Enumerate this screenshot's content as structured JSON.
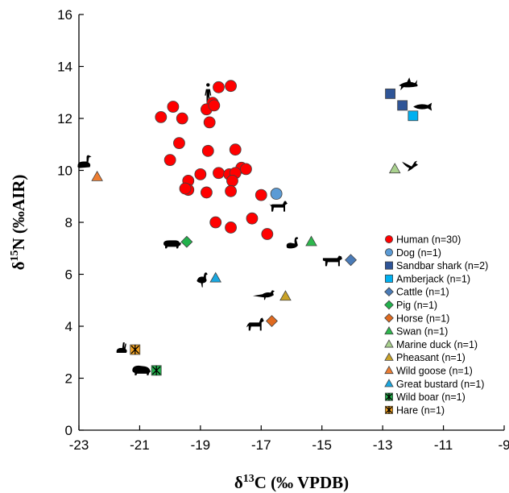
{
  "chart_data": {
    "type": "scatter",
    "xlabel_main": "δ",
    "xlabel_sup": "13",
    "xlabel_rest": "C (‰ VPDB)",
    "ylabel_main": "δ",
    "ylabel_sup": "15",
    "ylabel_rest": "N (‰AIR)",
    "xlim": [
      -23,
      -9
    ],
    "ylim": [
      0,
      16
    ],
    "xticks": [
      -23,
      -21,
      -19,
      -17,
      -15,
      -13,
      -11,
      -9
    ],
    "yticks": [
      0,
      2,
      4,
      6,
      8,
      10,
      12,
      14,
      16
    ],
    "xtick_labels": [
      "-23",
      "-21",
      "-19",
      "-17",
      "-15",
      "-13",
      "-11",
      "-9"
    ],
    "ytick_labels": [
      "0",
      "2",
      "4",
      "6",
      "8",
      "10",
      "12",
      "14",
      "16"
    ],
    "legend_position": "lower-right",
    "series": [
      {
        "name": "Human (n=30)",
        "marker": "circle",
        "color": "#ff0000",
        "points": [
          [
            -18.4,
            13.2
          ],
          [
            -18.0,
            13.25
          ],
          [
            -18.6,
            12.6
          ],
          [
            -19.9,
            12.45
          ],
          [
            -20.3,
            12.05
          ],
          [
            -19.6,
            12.0
          ],
          [
            -18.8,
            12.35
          ],
          [
            -18.55,
            12.5
          ],
          [
            -18.7,
            11.85
          ],
          [
            -19.7,
            11.05
          ],
          [
            -18.75,
            10.75
          ],
          [
            -17.85,
            10.8
          ],
          [
            -20.0,
            10.4
          ],
          [
            -17.65,
            10.1
          ],
          [
            -17.5,
            10.05
          ],
          [
            -18.4,
            9.9
          ],
          [
            -18.05,
            9.85
          ],
          [
            -17.85,
            9.9
          ],
          [
            -19.0,
            9.85
          ],
          [
            -19.4,
            9.6
          ],
          [
            -17.95,
            9.6
          ],
          [
            -19.4,
            9.25
          ],
          [
            -18.8,
            9.15
          ],
          [
            -18.0,
            9.2
          ],
          [
            -17.0,
            9.05
          ],
          [
            -17.3,
            8.15
          ],
          [
            -18.5,
            8.0
          ],
          [
            -18.0,
            7.8
          ],
          [
            -16.8,
            7.55
          ],
          [
            -19.5,
            9.3
          ]
        ]
      },
      {
        "name": "Dog (n=1)",
        "marker": "circle",
        "color": "#5b9bd5",
        "points": [
          [
            -16.5,
            9.1
          ]
        ]
      },
      {
        "name": "Sandbar shark (n=2)",
        "marker": "square",
        "color": "#2f5597",
        "points": [
          [
            -12.75,
            12.95
          ],
          [
            -12.35,
            12.5
          ]
        ]
      },
      {
        "name": "Amberjack (n=1)",
        "marker": "square",
        "color": "#00b0f0",
        "points": [
          [
            -12.0,
            12.1
          ]
        ]
      },
      {
        "name": "Cattle (n=1)",
        "marker": "diamond",
        "color": "#4a7bb7",
        "points": [
          [
            -14.05,
            6.55
          ]
        ]
      },
      {
        "name": "Pig (n=1)",
        "marker": "diamond",
        "color": "#22b14c",
        "points": [
          [
            -19.45,
            7.25
          ]
        ]
      },
      {
        "name": "Horse (n=1)",
        "marker": "diamond",
        "color": "#e06a1f",
        "points": [
          [
            -16.65,
            4.2
          ]
        ]
      },
      {
        "name": "Swan (n=1)",
        "marker": "triangle",
        "color": "#2db84d",
        "points": [
          [
            -15.35,
            7.25
          ]
        ]
      },
      {
        "name": "Marine duck (n=1)",
        "marker": "triangle",
        "color": "#a9d18e",
        "points": [
          [
            -12.6,
            10.05
          ]
        ]
      },
      {
        "name": " Pheasant (n=1)",
        "marker": "triangle",
        "color": "#c9a227",
        "points": [
          [
            -16.2,
            5.15
          ]
        ]
      },
      {
        "name": "Wild goose (n=1)",
        "marker": "triangle",
        "color": "#ed7d31",
        "points": [
          [
            -22.4,
            9.75
          ]
        ]
      },
      {
        "name": "Great bustard (n=1)",
        "marker": "triangle",
        "color": "#1aa7e0",
        "points": [
          [
            -18.5,
            5.85
          ]
        ]
      },
      {
        "name": "Wild boar (n=1)",
        "marker": "crossbox",
        "color": "#22b14c",
        "points": [
          [
            -20.45,
            2.3
          ]
        ]
      },
      {
        "name": "Hare (n=1)",
        "marker": "crossbox",
        "color": "#f0a020",
        "points": [
          [
            -21.15,
            3.1
          ]
        ]
      }
    ],
    "silhouettes": [
      {
        "icon": "human-icon",
        "x": -18.75,
        "y": 12.85
      },
      {
        "icon": "shark-icon",
        "x": -12.15,
        "y": 13.3
      },
      {
        "icon": "fish-icon",
        "x": -11.7,
        "y": 12.45
      },
      {
        "icon": "goose-icon",
        "x": -22.8,
        "y": 10.25
      },
      {
        "icon": "duck-icon",
        "x": -12.1,
        "y": 10.15
      },
      {
        "icon": "dog-icon",
        "x": -16.45,
        "y": 8.6
      },
      {
        "icon": "pig-icon",
        "x": -19.95,
        "y": 7.15
      },
      {
        "icon": "swan-icon",
        "x": -15.95,
        "y": 7.15
      },
      {
        "icon": "cattle-icon",
        "x": -14.65,
        "y": 6.5
      },
      {
        "icon": "bustard-icon",
        "x": -18.95,
        "y": 5.75
      },
      {
        "icon": "pheasant-icon",
        "x": -16.85,
        "y": 5.2
      },
      {
        "icon": "horse-icon",
        "x": -17.2,
        "y": 4.05
      },
      {
        "icon": "hare-icon",
        "x": -21.6,
        "y": 3.1
      },
      {
        "icon": "boar-icon",
        "x": -20.95,
        "y": 2.3
      }
    ]
  }
}
